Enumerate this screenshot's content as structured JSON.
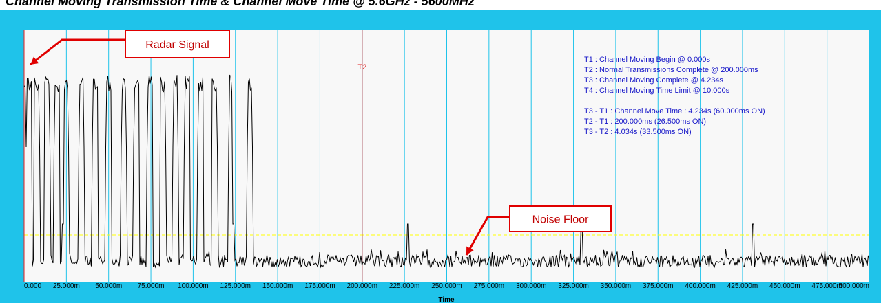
{
  "page": {
    "title": "Channel Moving Transmission Time & Channel Move Time @ 5.6GHz - 5600MHz"
  },
  "chart_data": {
    "type": "line",
    "xlabel": "Time",
    "ylabel": "",
    "xlim": [
      0,
      0.5
    ],
    "x_tick_labels": [
      "0.000",
      "25.000m",
      "50.000m",
      "75.000m",
      "100.000m",
      "125.000m",
      "150.000m",
      "175.000m",
      "200.000m",
      "225.000m",
      "250.000m",
      "275.000m",
      "300.000m",
      "325.000m",
      "350.000m",
      "375.000m",
      "400.000m",
      "425.000m",
      "450.000m",
      "475.000m",
      "500.000m"
    ],
    "grid": "vertical",
    "threshold_line": {
      "style": "dashed",
      "color": "#ffff00"
    },
    "markers": [
      {
        "label": "T2",
        "x": 0.2
      },
      {
        "label": "",
        "x": 0.0
      }
    ],
    "radar_bursts_ms": [
      0.5,
      3.0,
      7.5,
      13.5,
      19.5,
      24.5,
      34.0,
      42.0,
      50.0,
      59.0,
      66.5,
      74.5,
      82.0,
      89.5,
      96.5,
      104.5,
      112.5,
      122.5,
      133.5
    ],
    "noise_spikes_ms": [
      23.0,
      124.0,
      227.0,
      330.0,
      431.0
    ],
    "info_lines": [
      "T1 : Channel Moving Begin @ 0.000s",
      "T2 : Normal Transmissions Complete @ 200.000ms",
      "T3 : Channel Moving Complete @ 4.234s",
      "T4 : Channel Moving Time Limit @ 10.000s",
      "",
      "T3 - T1 : Channel Move Time : 4.234s (60.000ms ON)",
      "T2 - T1 : 200.000ms (26.500ms ON)",
      "T3 - T2 : 4.034s (33.500ms ON)"
    ],
    "annotations": [
      {
        "text": "Radar Signal"
      },
      {
        "text": "Noise Floor"
      }
    ],
    "colors": {
      "frame": "#1fc3ea",
      "plot_bg": "#f8f8f8",
      "grid": "#1fc3ea",
      "trace": "#000000",
      "marker": "#e02020",
      "info_text": "#1515c8",
      "callout": "#e00000",
      "threshold": "#ffff00"
    }
  }
}
